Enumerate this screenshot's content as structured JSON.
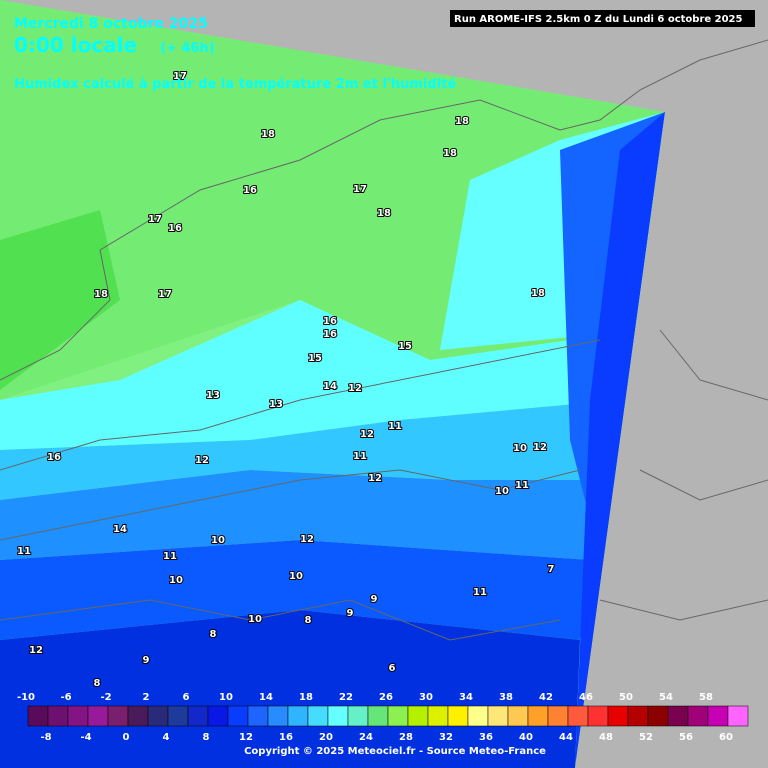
{
  "header": {
    "date": "Mercredi 8 octobre 2025",
    "time": "0:00 locale",
    "lead": "(+ 46h)",
    "title": "Humidex calculé à partir de la température 2m et l'humidité",
    "run": "Run AROME-IFS 2.5km 0 Z du Lundi 6 octobre 2025"
  },
  "map": {
    "contour_labels": [
      18,
      18,
      18,
      17,
      16,
      17,
      16,
      18,
      18,
      17,
      17,
      18,
      16,
      16,
      15,
      15,
      14,
      13,
      12,
      13,
      16,
      12,
      11,
      12,
      12,
      11,
      10,
      12,
      10,
      11,
      10,
      9,
      8,
      7,
      8,
      14,
      11,
      11,
      12,
      10,
      10,
      9,
      9,
      10,
      12,
      11,
      8,
      6
    ]
  },
  "colorbar": {
    "colors": [
      "#5a0a5a",
      "#6e1070",
      "#821486",
      "#961a9a",
      "#7a1e6e",
      "#4a1a5a",
      "#2a2a7a",
      "#1e3a9a",
      "#1428c8",
      "#0a18e6",
      "#0a3cff",
      "#1e64ff",
      "#288cff",
      "#30b4ff",
      "#46dcff",
      "#66ffff",
      "#66f0c8",
      "#66e678",
      "#8cf050",
      "#b4f000",
      "#dcf000",
      "#fff000",
      "#ffff8c",
      "#ffe678",
      "#ffc850",
      "#ffa028",
      "#ff8232",
      "#ff5a3c",
      "#ff3232",
      "#e60000",
      "#b40000",
      "#8c0000",
      "#7a0050",
      "#a00078",
      "#c800b4",
      "#ff64ff"
    ],
    "top_labels": [
      -10,
      -6,
      -2,
      2,
      6,
      10,
      14,
      18,
      22,
      26,
      30,
      34,
      38,
      42,
      46,
      50,
      54,
      58
    ],
    "bottom_labels": [
      -8,
      -4,
      0,
      4,
      8,
      12,
      16,
      20,
      24,
      28,
      32,
      36,
      40,
      44,
      48,
      52,
      56,
      60
    ]
  },
  "footer": {
    "copyright": "Copyright © 2025 Meteociel.fr - Source Meteo-France"
  }
}
